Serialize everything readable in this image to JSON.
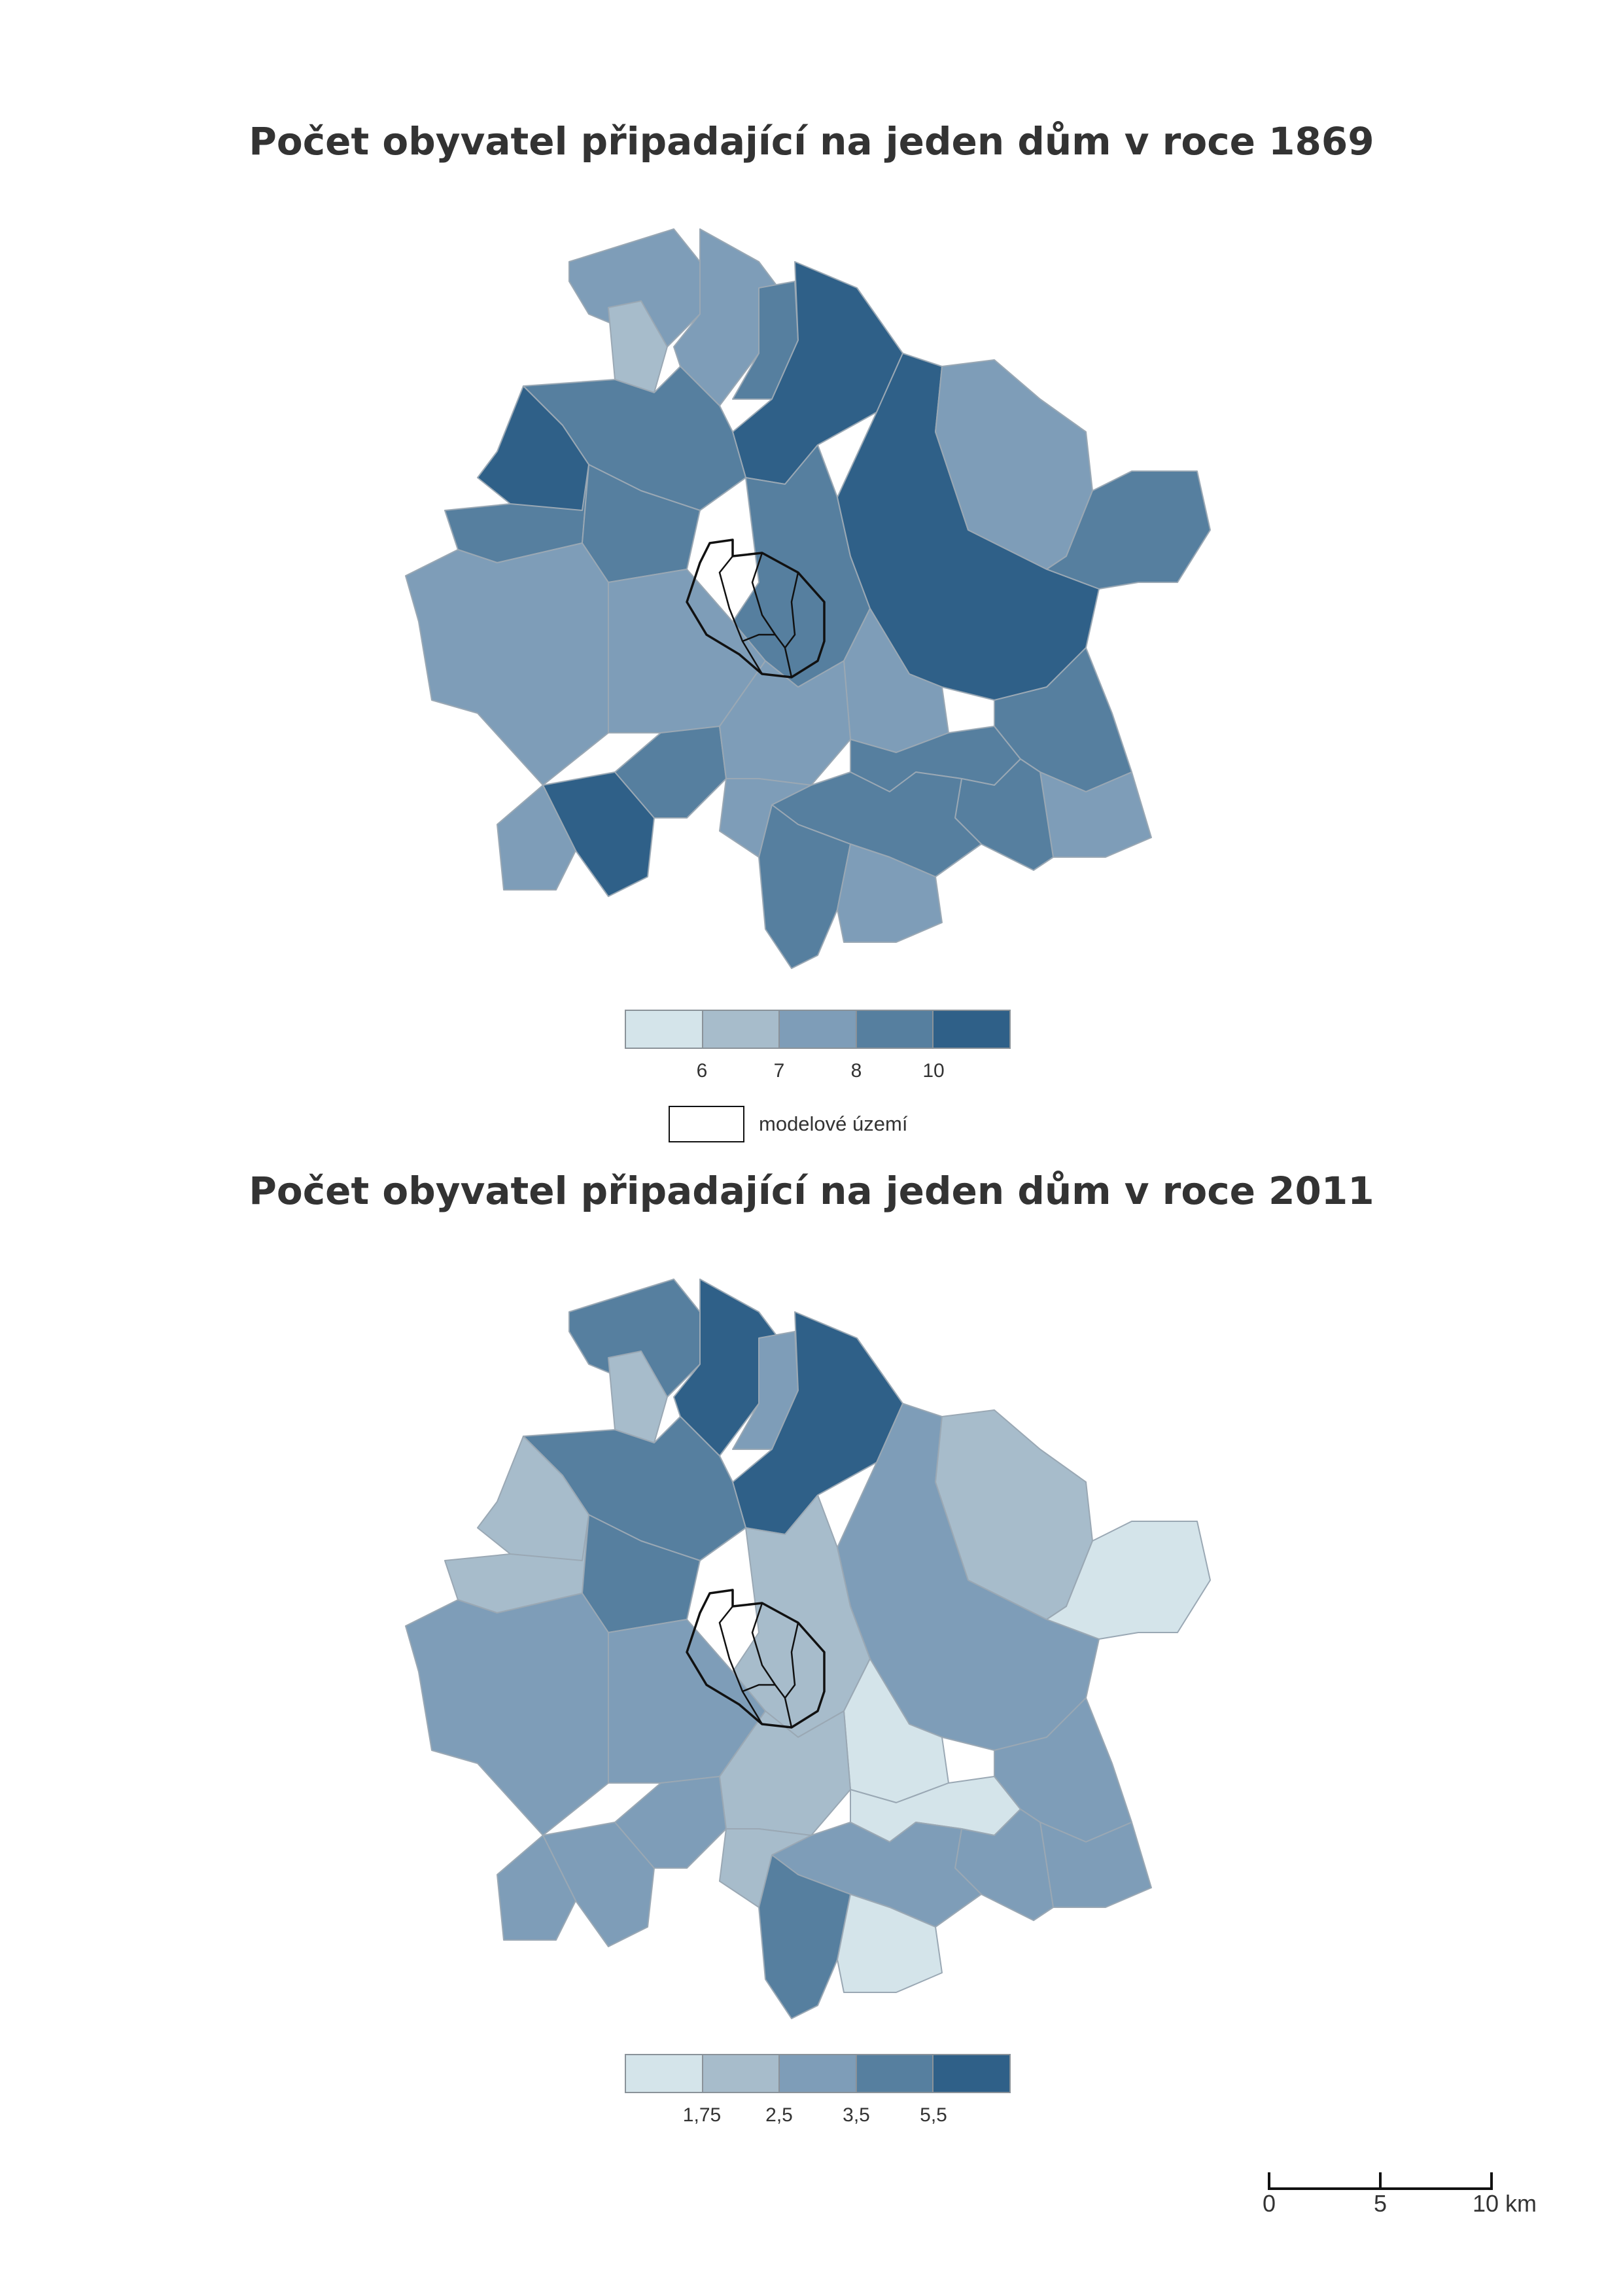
{
  "maps": [
    {
      "title": "Počet obyvatel připadající na jeden dům v roce 1869",
      "legend": {
        "breaks": [
          "6",
          "7",
          "8",
          "10"
        ]
      }
    },
    {
      "title": "Počet obyvatel připadající na jeden dům v roce 2011",
      "legend": {
        "breaks": [
          "1,75",
          "2,5",
          "3,5",
          "5,5"
        ]
      }
    }
  ],
  "class_colors": [
    "#d4e4ea",
    "#a7bccb",
    "#7e9db8",
    "#567f9f",
    "#2f6088"
  ],
  "model_area_label": "modelové území",
  "scale_bar": {
    "labels": [
      "0",
      "5",
      "10 km"
    ]
  }
}
